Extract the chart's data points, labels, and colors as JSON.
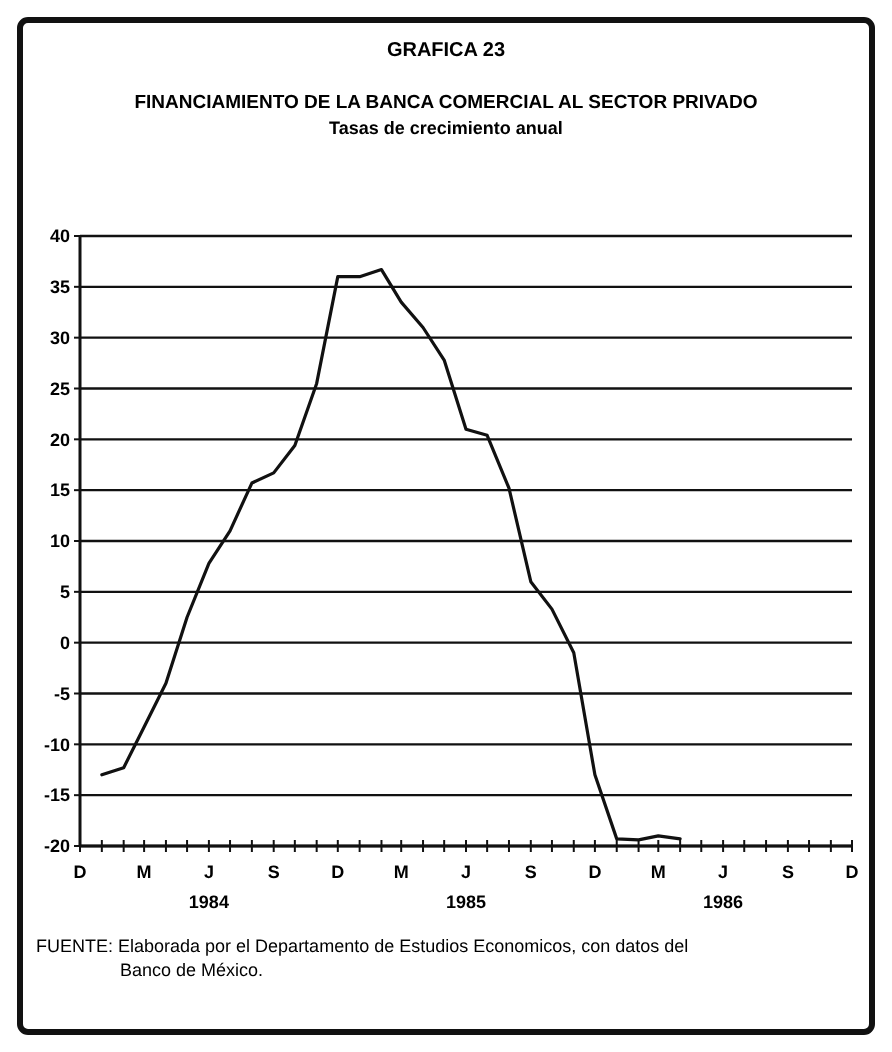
{
  "chart_data": {
    "type": "line",
    "title": "FINANCIAMIENTO DE LA BANCA COMERCIAL AL SECTOR PRIVADO",
    "subtitle": "Tasas de crecimiento anual",
    "annotations": [
      "GRAFICA 23",
      "FUENTE: Elaborada por el Departamento de Estudios Economicos, con datos del Banco de México."
    ],
    "x": [
      "1984-01",
      "1984-02",
      "1984-03",
      "1984-04",
      "1984-05",
      "1984-06",
      "1984-07",
      "1984-08",
      "1984-09",
      "1984-10",
      "1984-11",
      "1984-12",
      "1985-01",
      "1985-02",
      "1985-03",
      "1985-04",
      "1985-05",
      "1985-06",
      "1985-07",
      "1985-08",
      "1985-09",
      "1985-10",
      "1985-11",
      "1985-12",
      "1986-01",
      "1986-02",
      "1986-03",
      "1986-04"
    ],
    "series": [
      {
        "color": "#111111",
        "values": [
          -13,
          -12.3,
          -8.3,
          -4,
          2.5,
          7.8,
          11,
          15.7,
          16.7,
          19.4,
          25.5,
          36,
          36,
          36.7,
          33.5,
          31,
          27.8,
          21,
          20.4,
          15.2,
          6,
          3.3,
          -1,
          -13,
          -19.3,
          -19.4,
          -19,
          -19.3
        ]
      }
    ],
    "xlim": [
      "1983-12",
      "1986-12"
    ],
    "xticks": [
      {
        "value": "1983-12",
        "label": "D"
      },
      {
        "value": "1984-01",
        "label": null
      },
      {
        "value": "1984-02",
        "label": null
      },
      {
        "value": "1984-03",
        "label": "M"
      },
      {
        "value": "1984-04",
        "label": null
      },
      {
        "value": "1984-05",
        "label": null
      },
      {
        "value": "1984-06",
        "label": "J\n1984"
      },
      {
        "value": "1984-07",
        "label": null
      },
      {
        "value": "1984-08",
        "label": null
      },
      {
        "value": "1984-09",
        "label": "S"
      },
      {
        "value": "1984-10",
        "label": null
      },
      {
        "value": "1984-11",
        "label": null
      },
      {
        "value": "1984-12",
        "label": "D"
      },
      {
        "value": "1985-01",
        "label": null
      },
      {
        "value": "1985-02",
        "label": null
      },
      {
        "value": "1985-03",
        "label": "M"
      },
      {
        "value": "1985-04",
        "label": null
      },
      {
        "value": "1985-05",
        "label": null
      },
      {
        "value": "1985-06",
        "label": "J\n1985"
      },
      {
        "value": "1985-07",
        "label": null
      },
      {
        "value": "1985-08",
        "label": null
      },
      {
        "value": "1985-09",
        "label": "S"
      },
      {
        "value": "1985-10",
        "label": null
      },
      {
        "value": "1985-11",
        "label": null
      },
      {
        "value": "1985-12",
        "label": "D"
      },
      {
        "value": "1986-01",
        "label": null
      },
      {
        "value": "1986-02",
        "label": null
      },
      {
        "value": "1986-03",
        "label": "M"
      },
      {
        "value": "1986-04",
        "label": null
      },
      {
        "value": "1986-05",
        "label": null
      },
      {
        "value": "1986-06",
        "label": "J\n1986"
      },
      {
        "value": "1986-07",
        "label": null
      },
      {
        "value": "1986-08",
        "label": null
      },
      {
        "value": "1986-09",
        "label": "S"
      },
      {
        "value": "1986-10",
        "label": null
      },
      {
        "value": "1986-11",
        "label": null
      },
      {
        "value": "1986-12",
        "label": "D"
      }
    ],
    "ylim": [
      -20,
      40
    ],
    "yticks": [
      -20,
      -15,
      -10,
      -5,
      0,
      5,
      10,
      15,
      20,
      25,
      30,
      35,
      40
    ],
    "grid": "y",
    "marker": "none",
    "line_style": "solid"
  }
}
